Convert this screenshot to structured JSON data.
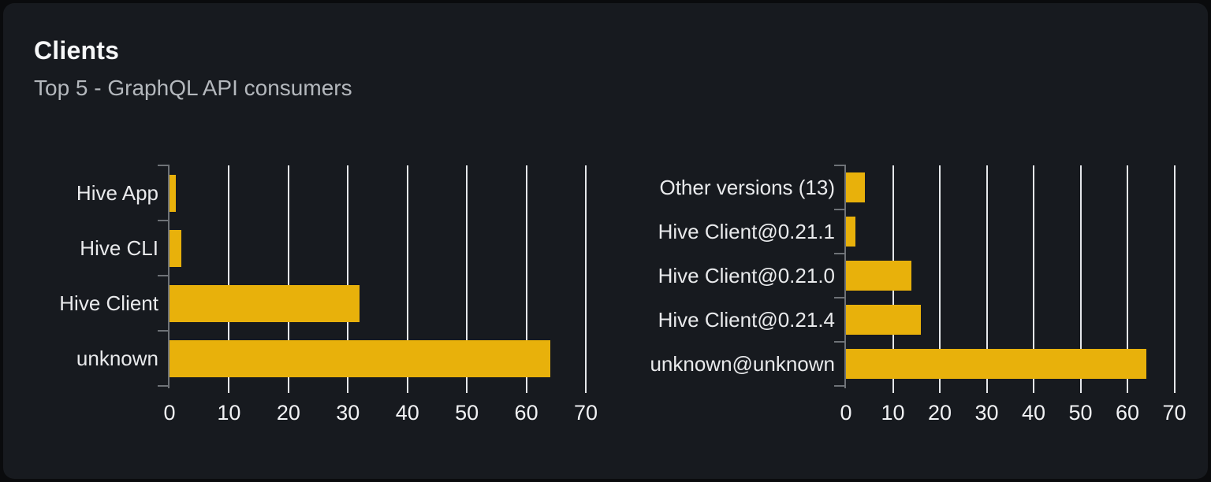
{
  "card": {
    "title": "Clients",
    "subtitle": "Top 5 - GraphQL API consumers"
  },
  "colors": {
    "page_bg": "#0A0B0D",
    "card_bg": "#171A1F",
    "bar": "#E8B10B",
    "gridline": "#E5E7EA",
    "axis": "#6E7277",
    "category_label": "#E9EAEC",
    "tick_label": "#F1F2F4",
    "title": "#F7F8F9",
    "subtitle": "#B4B8BD"
  },
  "chart_data": [
    {
      "type": "bar",
      "orientation": "horizontal",
      "name": "clients-by-name",
      "categories": [
        "Hive App",
        "Hive CLI",
        "Hive Client",
        "unknown"
      ],
      "values": [
        1,
        2,
        32,
        64
      ],
      "xlabel": "",
      "ylabel": "",
      "xlim": [
        0,
        70
      ],
      "xticks": [
        0,
        10,
        20,
        30,
        40,
        50,
        60,
        70
      ],
      "grid": true,
      "legend": false
    },
    {
      "type": "bar",
      "orientation": "horizontal",
      "name": "clients-by-version",
      "categories": [
        "Other versions (13)",
        "Hive Client@0.21.1",
        "Hive Client@0.21.0",
        "Hive Client@0.21.4",
        "unknown@unknown"
      ],
      "values": [
        4,
        2,
        14,
        16,
        64
      ],
      "xlabel": "",
      "ylabel": "",
      "xlim": [
        0,
        70
      ],
      "xticks": [
        0,
        10,
        20,
        30,
        40,
        50,
        60,
        70
      ],
      "grid": true,
      "legend": false
    }
  ]
}
